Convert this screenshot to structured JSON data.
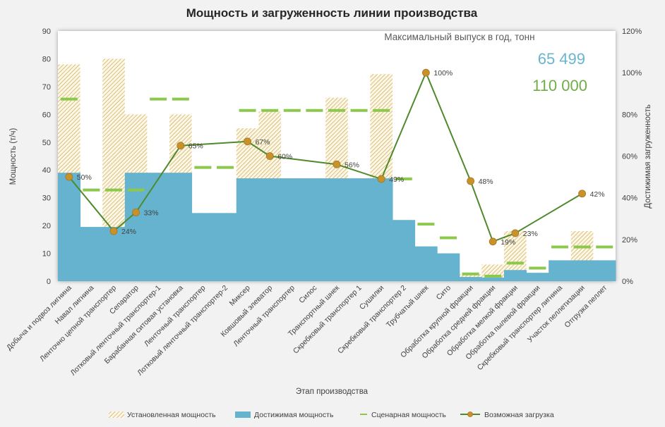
{
  "chart_data": {
    "type": "bar",
    "title": "Мощность и загруженность линии производства",
    "xlabel": "Этап производства",
    "ylabel": "Мощность (т/ч)",
    "y2label": "Достижимая загруженность",
    "ylim": [
      0,
      90
    ],
    "yticks": [
      "0",
      "10",
      "20",
      "30",
      "40",
      "50",
      "60",
      "70",
      "80",
      "90"
    ],
    "y2lim": [
      0,
      120
    ],
    "y2ticks": [
      "0%",
      "20%",
      "40%",
      "60%",
      "80%",
      "100%",
      "120%"
    ],
    "categories": [
      "Добыча и подвоз лигнина",
      "Навал лигнина",
      "Ленточно цепной транспортер",
      "Сепаратор",
      "Лотковый ленточный транспортер-1",
      "Барабанная ситовая установка",
      "Ленточный транспортер",
      "Лотковый ленточный транспортер-2",
      "Миксер",
      "Ковшовый элеватор",
      "Ленточный транспортер",
      "Силос",
      "Транспортный шнек",
      "Скребковый транспортер 1",
      "Сушилки",
      "Скребковый транспортер 2",
      "Трубчатый шнек",
      "Сито",
      "Обработка крупной фракции",
      "Обработка средней фракции",
      "Обработка мелкой фракции",
      "Обработка пылевой фракции",
      "Скребковый транспортер лигнина",
      "Участок пеллетизации",
      "Отгрузка пеллет"
    ],
    "series": [
      {
        "name": "Установленная мощность",
        "values": [
          78,
          19.5,
          80,
          60,
          39,
          60,
          24.5,
          24.5,
          55,
          61,
          37,
          37,
          66,
          37,
          74.5,
          22,
          12.5,
          10,
          2.5,
          6,
          18,
          3,
          7.5,
          18,
          7.5
        ]
      },
      {
        "name": "Достижимая мощность",
        "values": [
          39,
          19.5,
          19.5,
          39,
          39,
          39,
          24.5,
          24.5,
          37,
          37,
          37,
          37,
          37,
          37,
          37,
          22,
          12.5,
          10,
          1.5,
          1.3,
          4,
          3,
          7.5,
          7.5,
          7.5
        ]
      },
      {
        "name": "Сценарная мощность",
        "values": [
          65.5,
          32.8,
          32.8,
          32.8,
          65.5,
          65.5,
          40.9,
          40.9,
          61.4,
          61.4,
          61.4,
          61.4,
          61.4,
          61.4,
          61.4,
          36.8,
          20.5,
          15.6,
          2.6,
          1.8,
          6.5,
          4.7,
          12.3,
          12.3,
          12.3
        ]
      },
      {
        "name": "Возможная загрузка",
        "values": [
          50,
          null,
          24,
          33,
          null,
          65,
          null,
          null,
          67,
          60,
          null,
          null,
          56,
          null,
          49,
          null,
          100,
          null,
          48,
          19,
          23,
          null,
          null,
          42,
          null
        ]
      }
    ],
    "point_labels": [
      "50%",
      "",
      "24%",
      "33%",
      "",
      "65%",
      "",
      "",
      "67%",
      "60%",
      "",
      "",
      "56%",
      "",
      "49%",
      "",
      "100%",
      "",
      "48%",
      "19%",
      "23%",
      "",
      "",
      "42%",
      ""
    ],
    "annotation": {
      "title": "Максимальный выпуск в год, тонн",
      "value1": "65 499",
      "value2": "110 000"
    },
    "colors": {
      "installed_hatch": "#c9a24a",
      "achievable": "#66b3cf",
      "scenario": "#8cc84b",
      "line": "#4f8a2c",
      "marker": "#c8922a"
    },
    "grid": false,
    "legend_position": "bottom"
  }
}
